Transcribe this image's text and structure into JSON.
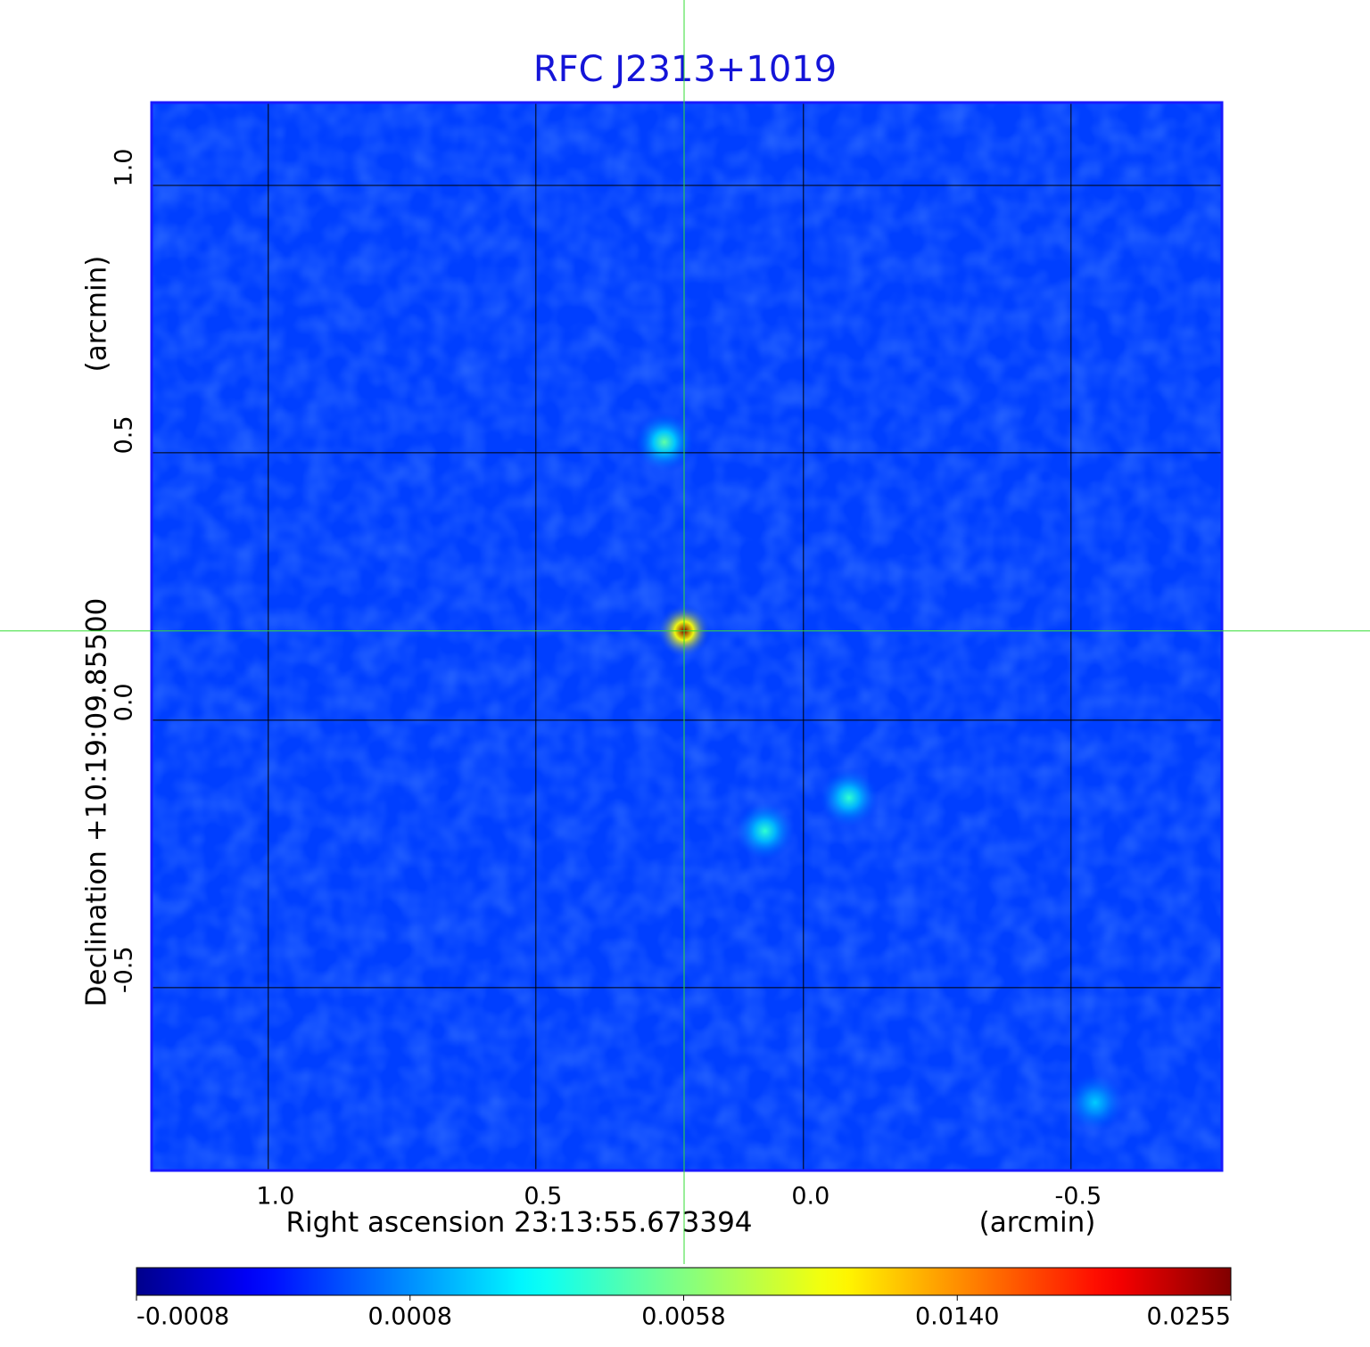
{
  "chart_data": {
    "type": "image",
    "title": "RFC J2313+1019",
    "xlabel": "Right ascension  23:13:55.673394",
    "xunit": "(arcmin)",
    "ylabel": "Declination  +10:19:09.85500",
    "yunit": "(arcmin)",
    "xlim": [
      1.218,
      -0.782
    ],
    "ylim": [
      -0.842,
      1.155
    ],
    "xticks": [
      {
        "value": 1.0,
        "label": "1.0"
      },
      {
        "value": 0.5,
        "label": "0.5"
      },
      {
        "value": 0.0,
        "label": "0.0"
      },
      {
        "value": -0.5,
        "label": "-0.5"
      }
    ],
    "yticks": [
      {
        "value": 1.0,
        "label": "1.0"
      },
      {
        "value": 0.5,
        "label": "0.5"
      },
      {
        "value": 0.0,
        "label": "0.0"
      },
      {
        "value": -0.5,
        "label": "-0.5"
      }
    ],
    "grid": true,
    "colormap": "jet",
    "background": 0.0003,
    "sources": [
      {
        "x": 0.223,
        "y": 0.167,
        "peak": 0.0255
      },
      {
        "x": 0.26,
        "y": 0.52,
        "peak": 0.005
      },
      {
        "x": 0.072,
        "y": -0.207,
        "peak": 0.004
      },
      {
        "x": -0.085,
        "y": -0.145,
        "peak": 0.004
      },
      {
        "x": -0.545,
        "y": -0.715,
        "peak": 0.002
      }
    ],
    "crosshair": {
      "x": 0.223,
      "y": 0.167
    },
    "colorbar_ticks": [
      {
        "value": -0.0008,
        "label": "-0.0008"
      },
      {
        "value": 0.0008,
        "label": "0.0008"
      },
      {
        "value": 0.0058,
        "label": "0.0058"
      },
      {
        "value": 0.014,
        "label": "0.0140"
      },
      {
        "value": 0.0255,
        "label": "0.0255"
      }
    ]
  }
}
